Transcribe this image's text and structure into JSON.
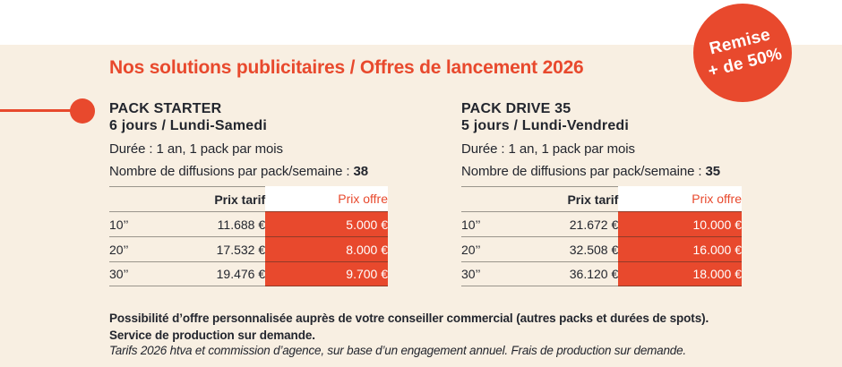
{
  "header": {
    "title": "Nos solutions publicitaires / Offres de lancement 2026",
    "badge": {
      "line1": "Remise",
      "line2": "+ de 50%"
    }
  },
  "packs": [
    {
      "name": "PACK STARTER",
      "schedule": "6 jours / Lundi-Samedi",
      "duration": "Durée : 1 an, 1 pack par mois",
      "diffusions_label": "Nombre de diffusions par pack/semaine :",
      "diffusions_value": "38",
      "table": {
        "headers": {
          "tarif": "Prix tarif",
          "offre": "Prix offre"
        },
        "rows": [
          {
            "spot": "10’’",
            "tarif": "11.688 €",
            "offre": "5.000 €"
          },
          {
            "spot": "20’’",
            "tarif": "17.532 €",
            "offre": "8.000 €"
          },
          {
            "spot": "30’’",
            "tarif": "19.476 €",
            "offre": "9.700 €"
          }
        ]
      }
    },
    {
      "name": "PACK DRIVE 35",
      "schedule": "5 jours / Lundi-Vendredi",
      "duration": "Durée : 1 an, 1 pack par mois",
      "diffusions_label": "Nombre de diffusions par pack/semaine :",
      "diffusions_value": "35",
      "table": {
        "headers": {
          "tarif": "Prix tarif",
          "offre": "Prix offre"
        },
        "rows": [
          {
            "spot": "10’’",
            "tarif": "21.672 €",
            "offre": "10.000 €"
          },
          {
            "spot": "20’’",
            "tarif": "32.508 €",
            "offre": "16.000 €"
          },
          {
            "spot": "30’’",
            "tarif": "36.120 €",
            "offre": "18.000 €"
          }
        ]
      }
    }
  ],
  "footer": {
    "note_line1": "Possibilité d’offre personnalisée auprès de votre conseiller commercial (autres packs et durées de spots).",
    "note_line2": "Service de production sur demande.",
    "legal": "Tarifs 2026 htva et commission d’agence, sur base d’un engagement annuel. Frais de production sur demande."
  },
  "colors": {
    "accent_red": "#E8492D",
    "background_cream": "#F8EFE2",
    "text_dark": "#23262E",
    "divider_gray": "#98938A",
    "offer_header_bg": "#FFFFFF"
  }
}
